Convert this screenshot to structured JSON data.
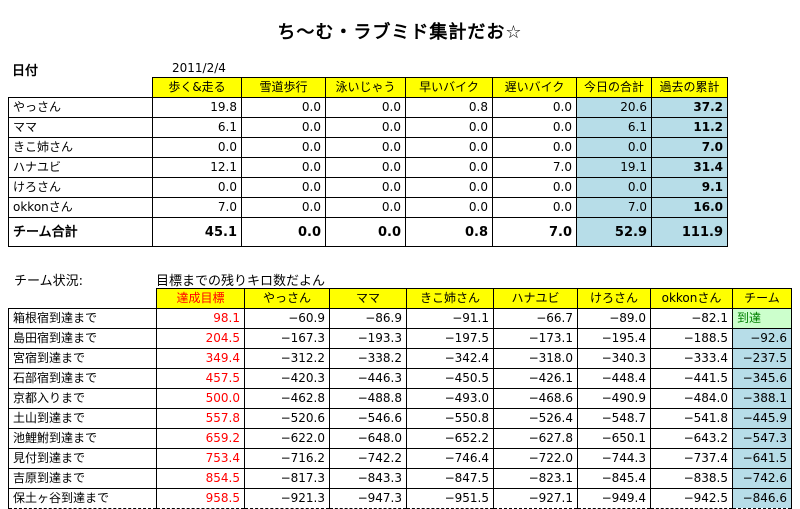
{
  "title": "ち～む・ラブミド集計だお☆",
  "date_label": "日付",
  "date_value": "2011/2/4",
  "table1": {
    "headers": [
      "歩く&走る",
      "雪道歩行",
      "泳いじゃう",
      "早いバイク",
      "遅いバイク",
      "今日の合計",
      "過去の累計"
    ],
    "rows": [
      {
        "name": "やっさん",
        "values": [
          "19.8",
          "0.0",
          "0.0",
          "0.8",
          "0.0",
          "20.6",
          "37.2"
        ]
      },
      {
        "name": "ママ",
        "values": [
          "6.1",
          "0.0",
          "0.0",
          "0.0",
          "0.0",
          "6.1",
          "11.2"
        ]
      },
      {
        "name": "きこ姉さん",
        "values": [
          "0.0",
          "0.0",
          "0.0",
          "0.0",
          "0.0",
          "0.0",
          "7.0"
        ]
      },
      {
        "name": "ハナユビ",
        "values": [
          "12.1",
          "0.0",
          "0.0",
          "0.0",
          "7.0",
          "19.1",
          "31.4"
        ]
      },
      {
        "name": "けろさん",
        "values": [
          "0.0",
          "0.0",
          "0.0",
          "0.0",
          "0.0",
          "0.0",
          "9.1"
        ]
      },
      {
        "name": "okkonさん",
        "values": [
          "7.0",
          "0.0",
          "0.0",
          "0.0",
          "0.0",
          "7.0",
          "16.0"
        ]
      }
    ],
    "total": {
      "name": "チーム合計",
      "values": [
        "45.1",
        "0.0",
        "0.0",
        "0.8",
        "7.0",
        "52.9",
        "111.9"
      ]
    }
  },
  "status_label": "チーム状況:",
  "status_note": "目標までの残りキロ数だよん",
  "table2": {
    "headers": [
      "達成目標",
      "やっさん",
      "ママ",
      "きこ姉さん",
      "ハナユビ",
      "けろさん",
      "okkonさん",
      "チーム"
    ],
    "rows": [
      {
        "name": "箱根宿到達まで",
        "values": [
          "98.1",
          "−60.9",
          "−86.9",
          "−91.1",
          "−66.7",
          "−89.0",
          "−82.1",
          "到達"
        ]
      },
      {
        "name": "島田宿到達まで",
        "values": [
          "204.5",
          "−167.3",
          "−193.3",
          "−197.5",
          "−173.1",
          "−195.4",
          "−188.5",
          "−92.6"
        ]
      },
      {
        "name": "宮宿到達まで",
        "values": [
          "349.4",
          "−312.2",
          "−338.2",
          "−342.4",
          "−318.0",
          "−340.3",
          "−333.4",
          "−237.5"
        ]
      },
      {
        "name": "石部宿到達まで",
        "values": [
          "457.5",
          "−420.3",
          "−446.3",
          "−450.5",
          "−426.1",
          "−448.4",
          "−441.5",
          "−345.6"
        ]
      },
      {
        "name": "京都入りまで",
        "values": [
          "500.0",
          "−462.8",
          "−488.8",
          "−493.0",
          "−468.6",
          "−490.9",
          "−484.0",
          "−388.1"
        ]
      },
      {
        "name": "土山到達まで",
        "values": [
          "557.8",
          "−520.6",
          "−546.6",
          "−550.8",
          "−526.4",
          "−548.7",
          "−541.8",
          "−445.9"
        ]
      },
      {
        "name": "池鯉鮒到達まで",
        "values": [
          "659.2",
          "−622.0",
          "−648.0",
          "−652.2",
          "−627.8",
          "−650.1",
          "−643.2",
          "−547.3"
        ]
      },
      {
        "name": "見付到達まで",
        "values": [
          "753.4",
          "−716.2",
          "−742.2",
          "−746.4",
          "−722.0",
          "−744.3",
          "−737.4",
          "−641.5"
        ]
      },
      {
        "name": "吉原到達まで",
        "values": [
          "854.5",
          "−817.3",
          "−843.3",
          "−847.5",
          "−823.1",
          "−845.4",
          "−838.5",
          "−742.6"
        ]
      },
      {
        "name": "保土ヶ谷到達まで",
        "values": [
          "958.5",
          "−921.3",
          "−947.3",
          "−951.5",
          "−927.1",
          "−949.4",
          "−942.5",
          "−846.6"
        ]
      }
    ]
  }
}
